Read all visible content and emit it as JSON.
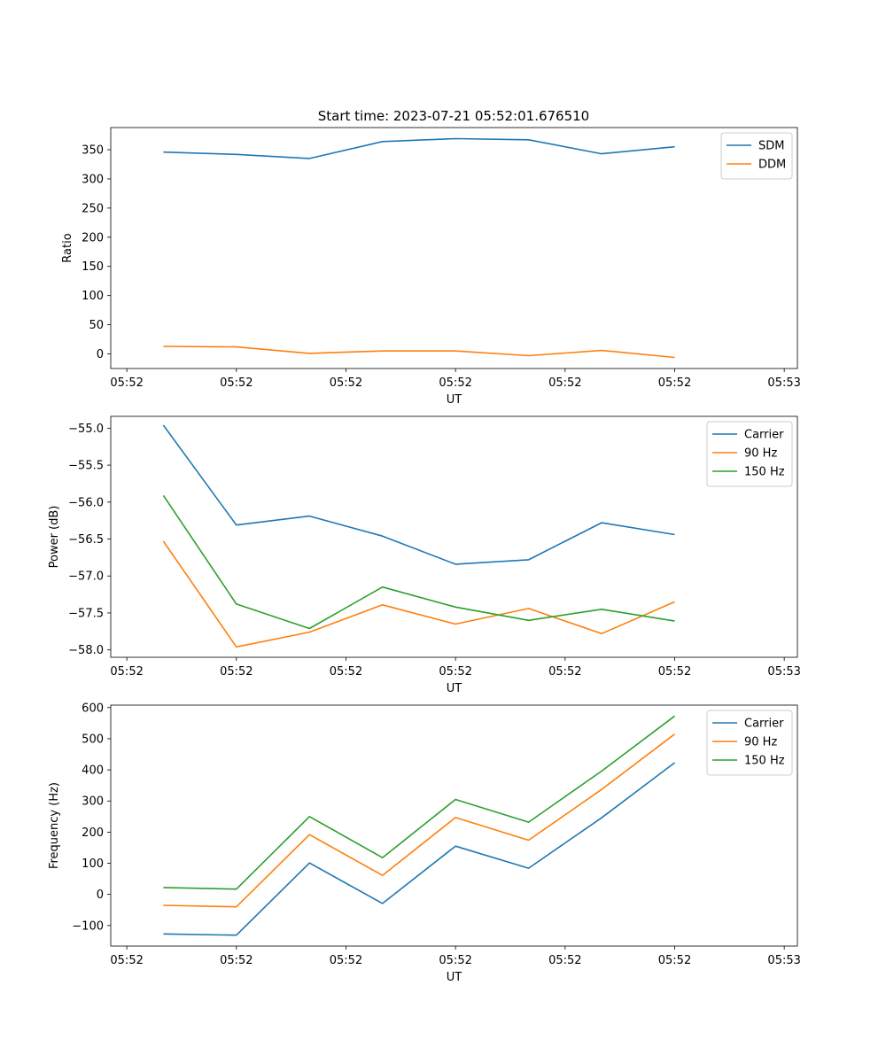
{
  "figure_title": "Start time: 2023-07-21 05:52:01.676510",
  "colors": {
    "blue": "#1f77b4",
    "orange": "#ff7f0e",
    "green": "#2ca02c"
  },
  "chart_data": [
    {
      "type": "line",
      "title": "Start time: 2023-07-21 05:52:01.676510",
      "xlabel": "UT",
      "ylabel": "Ratio",
      "x": [
        1,
        2,
        3,
        4,
        5,
        6,
        7,
        8
      ],
      "xlim": [
        0.28,
        9.68
      ],
      "xticks": [
        0.5,
        2,
        3.5,
        5,
        6.5,
        8,
        9.5
      ],
      "xtick_labels": [
        "05:52",
        "05:52",
        "05:52",
        "05:52",
        "05:52",
        "05:52",
        "05:53"
      ],
      "ylim": [
        -25,
        388
      ],
      "yticks": [
        0,
        50,
        100,
        150,
        200,
        250,
        300,
        350
      ],
      "ytick_labels": [
        "0",
        "50",
        "100",
        "150",
        "200",
        "250",
        "300",
        "350"
      ],
      "legend": "top-right",
      "series": [
        {
          "name": "SDM",
          "color": "#1f77b4",
          "values": [
            346,
            342,
            335,
            364,
            369,
            367,
            343,
            355
          ]
        },
        {
          "name": "DDM",
          "color": "#ff7f0e",
          "values": [
            13,
            12,
            1,
            5,
            5,
            -3,
            6,
            -6
          ]
        }
      ]
    },
    {
      "type": "line",
      "title": "",
      "xlabel": "UT",
      "ylabel": "Power (dB)",
      "x": [
        1,
        2,
        3,
        4,
        5,
        6,
        7,
        8
      ],
      "xlim": [
        0.28,
        9.68
      ],
      "xticks": [
        0.5,
        2,
        3.5,
        5,
        6.5,
        8,
        9.5
      ],
      "xtick_labels": [
        "05:52",
        "05:52",
        "05:52",
        "05:52",
        "05:52",
        "05:52",
        "05:53"
      ],
      "ylim": [
        -58.1,
        -54.84
      ],
      "yticks": [
        -58.0,
        -57.5,
        -57.0,
        -56.5,
        -56.0,
        -55.5,
        -55.0
      ],
      "ytick_labels": [
        "−58.0",
        "−57.5",
        "−57.0",
        "−56.5",
        "−56.0",
        "−55.5",
        "−55.0"
      ],
      "legend": "top-right",
      "series": [
        {
          "name": "Carrier",
          "color": "#1f77b4",
          "values": [
            -54.96,
            -56.31,
            -56.19,
            -56.46,
            -56.84,
            -56.78,
            -56.28,
            -56.44
          ]
        },
        {
          "name": "90 Hz",
          "color": "#ff7f0e",
          "values": [
            -56.53,
            -57.96,
            -57.76,
            -57.39,
            -57.65,
            -57.44,
            -57.78,
            -57.35
          ]
        },
        {
          "name": "150 Hz",
          "color": "#2ca02c",
          "values": [
            -55.91,
            -57.38,
            -57.71,
            -57.15,
            -57.42,
            -57.6,
            -57.45,
            -57.61
          ]
        }
      ]
    },
    {
      "type": "line",
      "title": "",
      "xlabel": "UT",
      "ylabel": "Frequency (Hz)",
      "x": [
        1,
        2,
        3,
        4,
        5,
        6,
        7,
        8
      ],
      "xlim": [
        0.28,
        9.68
      ],
      "xticks": [
        0.5,
        2,
        3.5,
        5,
        6.5,
        8,
        9.5
      ],
      "xtick_labels": [
        "05:52",
        "05:52",
        "05:52",
        "05:52",
        "05:52",
        "05:52",
        "05:53"
      ],
      "ylim": [
        -166,
        608
      ],
      "yticks": [
        -100,
        0,
        100,
        200,
        300,
        400,
        500,
        600
      ],
      "ytick_labels": [
        "−100",
        "0",
        "100",
        "200",
        "300",
        "400",
        "500",
        "600"
      ],
      "legend": "top-right",
      "series": [
        {
          "name": "Carrier",
          "color": "#1f77b4",
          "values": [
            -127,
            -131,
            101,
            -29,
            155,
            84,
            246,
            423
          ]
        },
        {
          "name": "90 Hz",
          "color": "#ff7f0e",
          "values": [
            -35,
            -40,
            192,
            61,
            247,
            174,
            337,
            515
          ]
        },
        {
          "name": "150 Hz",
          "color": "#2ca02c",
          "values": [
            22,
            17,
            250,
            118,
            305,
            232,
            396,
            573
          ]
        }
      ]
    }
  ]
}
